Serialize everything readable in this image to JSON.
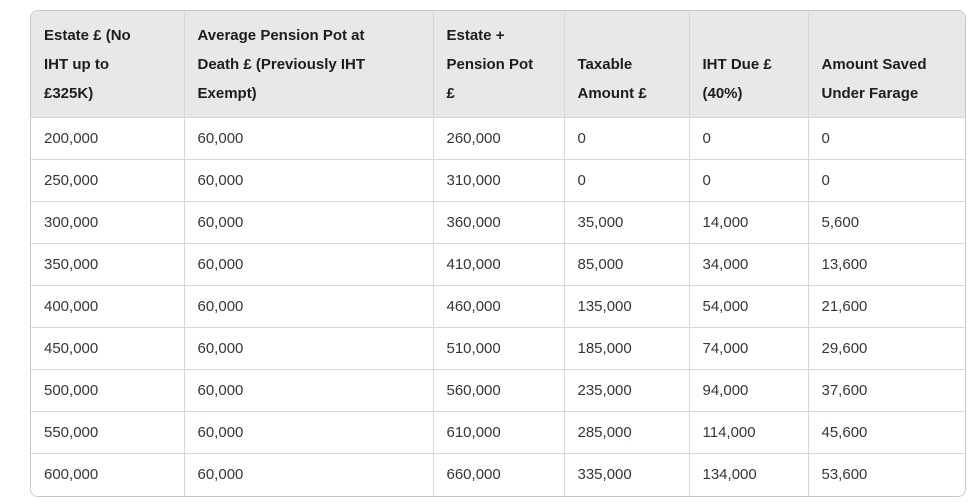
{
  "colors": {
    "header_bg": "#e8e8e8",
    "inner_border": "#d8d8d8",
    "outer_border": "#c8c8c8",
    "header_text": "#1d1d1f",
    "body_text": "#32373c",
    "page_bg": "#ffffff"
  },
  "display": {
    "header_lines": [
      "Estate £ (No\nIHT up to\n£325K)",
      "Average Pension Pot at\nDeath £ (Previously IHT\nExempt)",
      "Estate +\nPension Pot\n£",
      "Taxable\nAmount £",
      "IHT Due £\n(40%)",
      "Amount Saved\nUnder Farage"
    ]
  },
  "chart_data": {
    "type": "table",
    "columns": [
      "Estate £ (No IHT up to £325K)",
      "Average Pension Pot at Death £ (Previously IHT Exempt)",
      "Estate + Pension Pot £",
      "Taxable Amount £",
      "IHT Due £ (40%)",
      "Amount Saved Under Farage"
    ],
    "rows": [
      [
        "200,000",
        "60,000",
        "260,000",
        "0",
        "0",
        "0"
      ],
      [
        "250,000",
        "60,000",
        "310,000",
        "0",
        "0",
        "0"
      ],
      [
        "300,000",
        "60,000",
        "360,000",
        "35,000",
        "14,000",
        "5,600"
      ],
      [
        "350,000",
        "60,000",
        "410,000",
        "85,000",
        "34,000",
        "13,600"
      ],
      [
        "400,000",
        "60,000",
        "460,000",
        "135,000",
        "54,000",
        "21,600"
      ],
      [
        "450,000",
        "60,000",
        "510,000",
        "185,000",
        "74,000",
        "29,600"
      ],
      [
        "500,000",
        "60,000",
        "560,000",
        "235,000",
        "94,000",
        "37,600"
      ],
      [
        "550,000",
        "60,000",
        "610,000",
        "285,000",
        "114,000",
        "45,600"
      ],
      [
        "600,000",
        "60,000",
        "660,000",
        "335,000",
        "134,000",
        "53,600"
      ]
    ]
  }
}
